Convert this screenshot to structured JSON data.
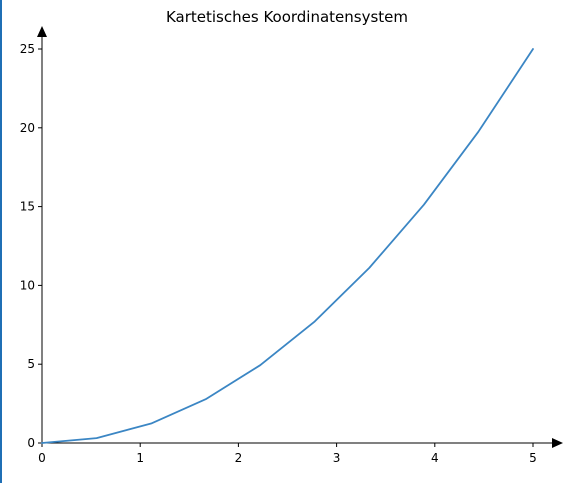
{
  "chart_data": {
    "type": "line",
    "title": "Kartetisches Koordinatensystem",
    "xlabel": "",
    "ylabel": "",
    "xlim": [
      0,
      5
    ],
    "ylim": [
      0,
      25
    ],
    "x_ticks": [
      0,
      1,
      2,
      3,
      4,
      5
    ],
    "y_ticks": [
      0,
      5,
      10,
      15,
      20,
      25
    ],
    "grid": false,
    "series": [
      {
        "color": "#3b86c4",
        "x": [
          0,
          0.556,
          1.111,
          1.667,
          2.222,
          2.778,
          3.333,
          3.889,
          4.444,
          5.0
        ],
        "y": [
          0,
          0.309,
          1.235,
          2.778,
          4.938,
          7.716,
          11.111,
          15.123,
          19.753,
          25.0
        ]
      }
    ],
    "axis_color": "#000000"
  }
}
